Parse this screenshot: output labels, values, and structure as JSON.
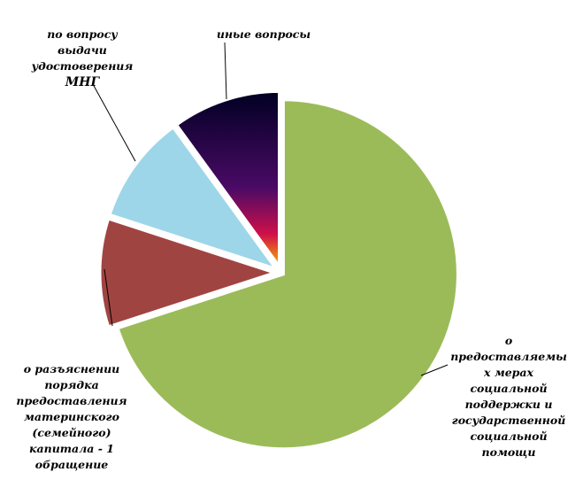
{
  "chart_data": {
    "type": "pie",
    "exploded": true,
    "slices": [
      {
        "value": 70,
        "color": "#9bbb59",
        "label_lines": [
          "о",
          "предоставляемы",
          "х мерах",
          "социальной",
          "поддержки и",
          "государственной",
          "социальной",
          "помощи"
        ]
      },
      {
        "value": 10,
        "color": "#a04442",
        "label_lines": [
          "о разъяснении",
          "порядка",
          "предоставления",
          "материнского",
          "(семейного)",
          "капитала - 1",
          "обращение"
        ]
      },
      {
        "value": 10,
        "color": "#9dd6e8",
        "label_lines": [
          "по вопросу",
          "выдачи",
          "удостоверения",
          "МНГ"
        ]
      },
      {
        "value": 10,
        "color": "#000033",
        "gradient": [
          "#f7b000",
          "#c0004a",
          "#3a0066",
          "#000033"
        ],
        "label_lines": [
          "иные вопросы"
        ]
      }
    ]
  }
}
